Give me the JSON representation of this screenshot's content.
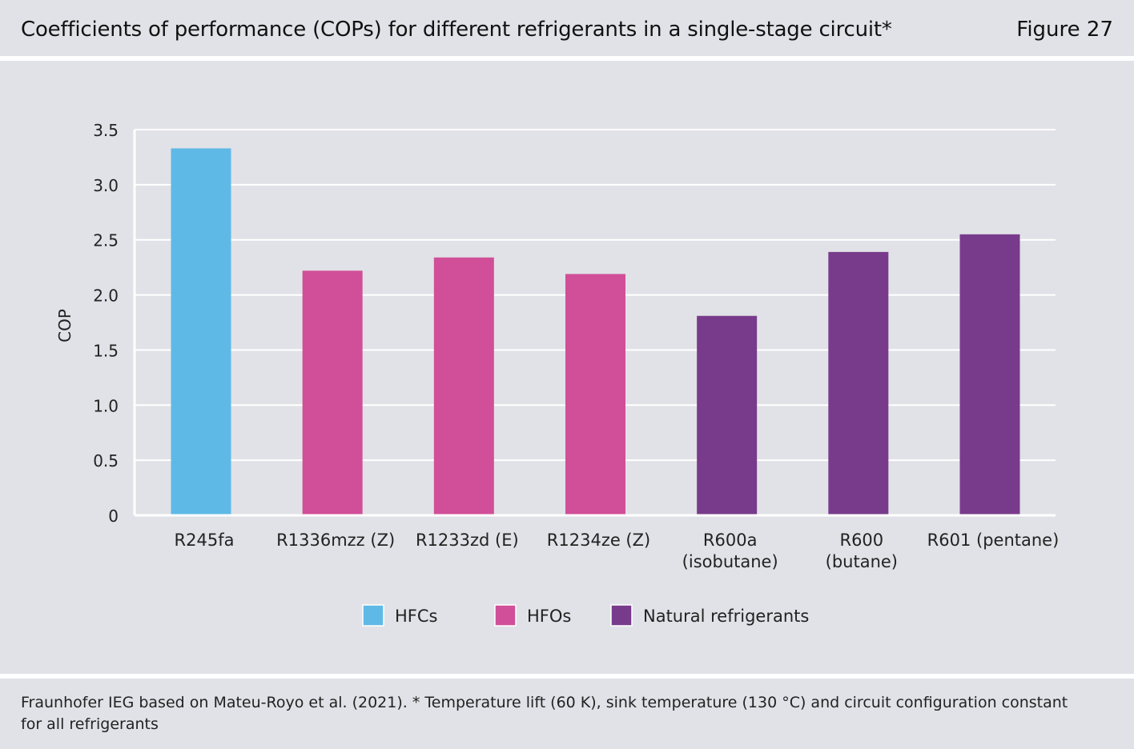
{
  "header": {
    "title": "Coefficients of performance (COPs) for different refrigerants in a single-stage circuit*",
    "figure_label": "Figure 27"
  },
  "footer": {
    "source": "Fraunhofer IEG based on Mateu-Royo et al. (2021). * Temperature lift (60 K), sink temperature (130 °C) and circuit configuration constant for all refrigerants"
  },
  "colors": {
    "HFCs": "#5fb9e6",
    "HFOs": "#d14f98",
    "Natural refrigerants": "#783b8b",
    "grid": "#ffffff",
    "background": "#e1e2e7"
  },
  "chart_data": {
    "type": "bar",
    "title": "Coefficients of performance (COPs) for different refrigerants in a single-stage circuit*",
    "xlabel": "",
    "ylabel": "COP",
    "ylim": [
      0,
      3.5
    ],
    "yticks": [
      {
        "value": 0,
        "label": "0"
      },
      {
        "value": 0.5,
        "label": "0.5"
      },
      {
        "value": 1.0,
        "label": "1.0"
      },
      {
        "value": 1.5,
        "label": "1.5"
      },
      {
        "value": 2.0,
        "label": "2.0"
      },
      {
        "value": 2.5,
        "label": "2.5"
      },
      {
        "value": 3.0,
        "label": "3.0"
      },
      {
        "value": 3.5,
        "label": "3.5"
      }
    ],
    "grid": true,
    "legend_position": "bottom-center",
    "legend": [
      "HFCs",
      "HFOs",
      "Natural refrigerants"
    ],
    "categories": [
      [
        "R245fa"
      ],
      [
        "R1336mzz (Z)"
      ],
      [
        "R1233zd (E)"
      ],
      [
        "R1234ze (Z)"
      ],
      [
        "R600a",
        "(isobutane)"
      ],
      [
        "R600",
        "(butane)"
      ],
      [
        "R601 (pentane)"
      ]
    ],
    "values": [
      3.33,
      2.22,
      2.34,
      2.19,
      1.81,
      2.39,
      2.55
    ],
    "groups": [
      "HFCs",
      "HFOs",
      "HFOs",
      "HFOs",
      "Natural refrigerants",
      "Natural refrigerants",
      "Natural refrigerants"
    ]
  }
}
